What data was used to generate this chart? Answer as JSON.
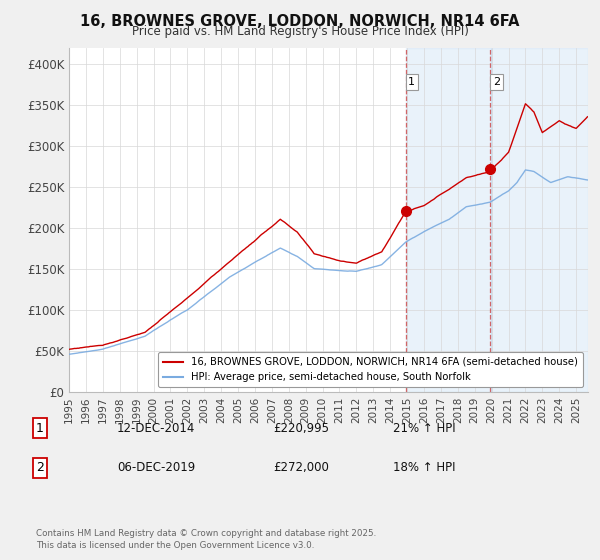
{
  "title": "16, BROWNES GROVE, LODDON, NORWICH, NR14 6FA",
  "subtitle": "Price paid vs. HM Land Registry's House Price Index (HPI)",
  "ylabel_ticks": [
    "£0",
    "£50K",
    "£100K",
    "£150K",
    "£200K",
    "£250K",
    "£300K",
    "£350K",
    "£400K"
  ],
  "ytick_vals": [
    0,
    50000,
    100000,
    150000,
    200000,
    250000,
    300000,
    350000,
    400000
  ],
  "ylim": [
    0,
    420000
  ],
  "xlim_start": 1995,
  "xlim_end": 2025.7,
  "red_color": "#cc0000",
  "blue_color": "#7aabe0",
  "shade_color": "#ddeeff",
  "marker1_x": 2014.92,
  "marker1_y": 220995,
  "marker2_x": 2019.92,
  "marker2_y": 272000,
  "legend1": "16, BROWNES GROVE, LODDON, NORWICH, NR14 6FA (semi-detached house)",
  "legend2": "HPI: Average price, semi-detached house, South Norfolk",
  "annot1_label": "1",
  "annot1_date": "12-DEC-2014",
  "annot1_price": "£220,995",
  "annot1_hpi": "21% ↑ HPI",
  "annot2_label": "2",
  "annot2_date": "06-DEC-2019",
  "annot2_price": "£272,000",
  "annot2_hpi": "18% ↑ HPI",
  "footnote": "Contains HM Land Registry data © Crown copyright and database right 2025.\nThis data is licensed under the Open Government Licence v3.0.",
  "bg_color": "#f0f0f0",
  "plot_bg": "#ffffff",
  "shade1_start": 2014.95,
  "shade1_end": 2019.95,
  "shade2_start": 2019.95,
  "shade2_end": 2025.7
}
